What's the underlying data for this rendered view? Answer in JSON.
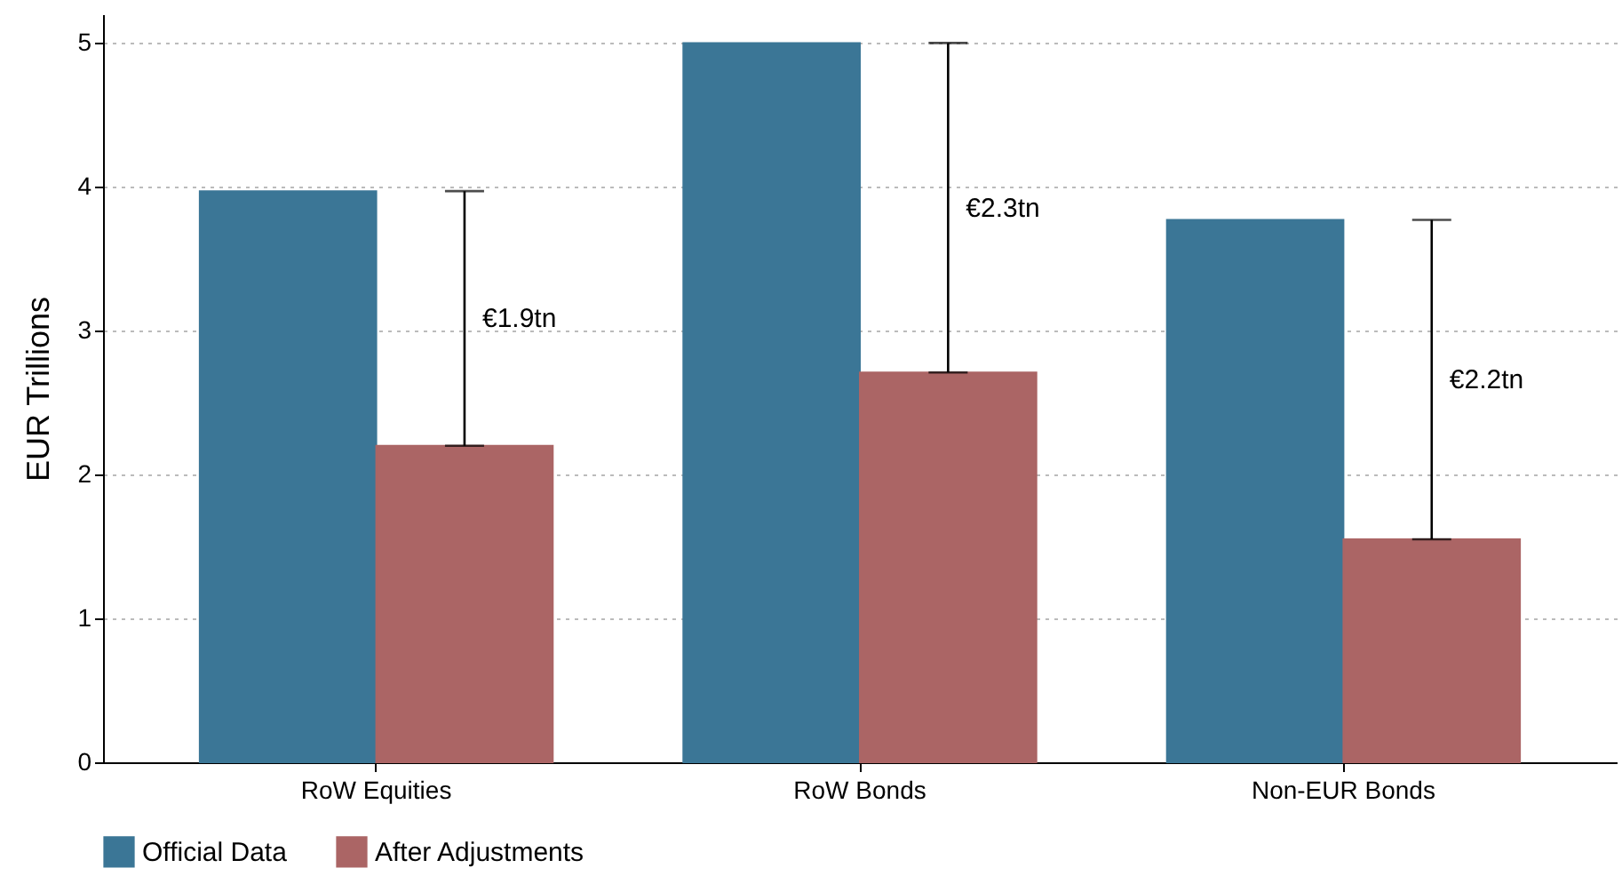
{
  "chart_data": {
    "type": "bar",
    "ylabel": "EUR Trillions",
    "categories": [
      "RoW Equities",
      "RoW Bonds",
      "Non-EUR Bonds"
    ],
    "series": [
      {
        "name": "Official Data",
        "color": "#3b7696",
        "values": [
          3.97,
          5.0,
          3.77
        ]
      },
      {
        "name": "After Adjustments",
        "color": "#ab6565",
        "values": [
          2.2,
          2.71,
          1.55
        ]
      }
    ],
    "ylim": [
      0,
      5.2
    ],
    "yticks": [
      0,
      1,
      2,
      3,
      4,
      5
    ],
    "grid": "y",
    "legend": "bottom",
    "annotations": [
      "€1.9tn",
      "€2.3tn",
      "€2.2tn"
    ]
  }
}
